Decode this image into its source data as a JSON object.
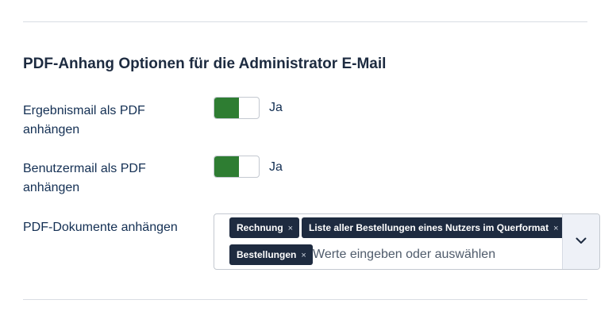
{
  "section": {
    "title": "PDF-Anhang Optionen für die Administrator E-Mail"
  },
  "rows": {
    "result_mail": {
      "label": "Ergebnismail als PDF anhängen",
      "value_label": "Ja",
      "checked": true
    },
    "user_mail": {
      "label": "Benutzermail als PDF anhängen",
      "value_label": "Ja",
      "checked": true
    },
    "documents": {
      "label": "PDF-Dokumente anhängen",
      "chips": [
        {
          "label": "Rechnung",
          "remove": "×"
        },
        {
          "label": "Liste aller Bestellungen eines Nutzers im Querformat",
          "remove": "×"
        },
        {
          "label": "Bestellungen",
          "remove": "×"
        }
      ],
      "placeholder": "Werte eingeben oder auswählen",
      "toggle_icon": "chevron-down-icon"
    }
  },
  "colors": {
    "switch_on": "#2e7d32",
    "chip_bg": "#1e2b40",
    "text": "#132f53",
    "toggle_bg": "#eef1f7"
  }
}
